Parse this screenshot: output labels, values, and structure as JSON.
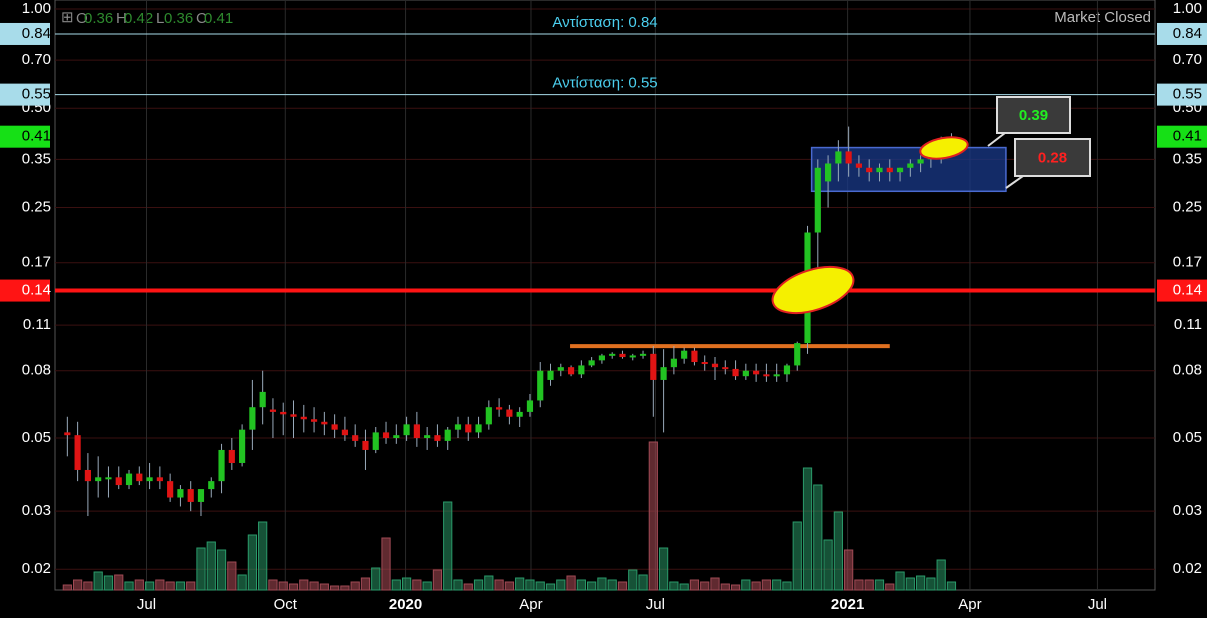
{
  "chart_data": {
    "type": "candlestick",
    "market_status": "Market Closed",
    "ohlc_legend": [
      {
        "key": "O",
        "value": 0.36
      },
      {
        "key": "H",
        "value": 0.42
      },
      {
        "key": "L",
        "value": 0.36
      },
      {
        "key": "C",
        "value": 0.41
      }
    ],
    "log_scale": true,
    "grid": true,
    "up_color": "#22c322",
    "down_color": "#e01414",
    "ylim": [
      0.0173,
      1.0
    ],
    "yticks": [
      {
        "value": 1.0,
        "label": "1.00"
      },
      {
        "value": 0.7,
        "label": "0.70"
      },
      {
        "value": 0.5,
        "label": "0.50"
      },
      0.35,
      0.25,
      0.17,
      0.11,
      0.08,
      0.05,
      0.03,
      0.02
    ],
    "xlim": [
      -1.2,
      105.8
    ],
    "xticks": [
      {
        "value": 7.7,
        "label": "Jul"
      },
      {
        "value": 21.2,
        "label": "Oct"
      },
      {
        "value": 32.9,
        "label": "2020"
      },
      {
        "value": 45.1,
        "label": "Apr"
      },
      {
        "value": 57.2,
        "label": "Jul"
      },
      {
        "value": 75.9,
        "label": "2021"
      },
      {
        "value": 87.8,
        "label": "Apr"
      },
      {
        "value": 100.2,
        "label": "Jul"
      }
    ],
    "open": [
      0.052,
      0.051,
      0.04,
      0.037,
      0.038,
      0.038,
      0.036,
      0.039,
      0.037,
      0.038,
      0.037,
      0.033,
      0.035,
      0.032,
      0.035,
      0.037,
      0.046,
      0.042,
      0.053,
      0.062,
      0.061,
      0.06,
      0.059,
      0.058,
      0.057,
      0.056,
      0.055,
      0.053,
      0.051,
      0.049,
      0.046,
      0.052,
      0.05,
      0.051,
      0.055,
      0.05,
      0.051,
      0.049,
      0.053,
      0.055,
      0.052,
      0.055,
      0.062,
      0.061,
      0.058,
      0.06,
      0.065,
      0.075,
      0.08,
      0.082,
      0.078,
      0.083,
      0.086,
      0.089,
      0.09,
      0.088,
      0.089,
      0.09,
      0.075,
      0.082,
      0.087,
      0.092,
      0.085,
      0.084,
      0.082,
      0.081,
      0.077,
      0.08,
      0.078,
      0.077,
      0.078,
      0.083,
      0.097,
      0.21,
      0.3,
      0.34,
      0.37,
      0.34,
      0.33,
      0.32,
      0.33,
      0.32,
      0.33,
      0.34,
      0.35,
      0.35,
      0.36
    ],
    "high": [
      0.058,
      0.056,
      0.045,
      0.044,
      0.041,
      0.041,
      0.04,
      0.041,
      0.042,
      0.041,
      0.039,
      0.036,
      0.037,
      0.034,
      0.038,
      0.048,
      0.05,
      0.055,
      0.075,
      0.08,
      0.066,
      0.064,
      0.065,
      0.063,
      0.062,
      0.06,
      0.059,
      0.058,
      0.055,
      0.053,
      0.054,
      0.056,
      0.055,
      0.058,
      0.06,
      0.054,
      0.055,
      0.054,
      0.058,
      0.058,
      0.058,
      0.065,
      0.066,
      0.063,
      0.062,
      0.068,
      0.085,
      0.084,
      0.084,
      0.083,
      0.086,
      0.088,
      0.09,
      0.091,
      0.092,
      0.09,
      0.092,
      0.095,
      0.093,
      0.095,
      0.094,
      0.094,
      0.089,
      0.088,
      0.086,
      0.086,
      0.084,
      0.084,
      0.084,
      0.084,
      0.084,
      0.098,
      0.22,
      0.35,
      0.36,
      0.4,
      0.44,
      0.36,
      0.35,
      0.34,
      0.35,
      0.33,
      0.35,
      0.36,
      0.37,
      0.41,
      0.42
    ],
    "low": [
      0.044,
      0.037,
      0.029,
      0.033,
      0.033,
      0.035,
      0.035,
      0.036,
      0.035,
      0.035,
      0.032,
      0.031,
      0.03,
      0.029,
      0.033,
      0.034,
      0.04,
      0.041,
      0.046,
      0.055,
      0.05,
      0.051,
      0.05,
      0.052,
      0.052,
      0.051,
      0.05,
      0.049,
      0.047,
      0.04,
      0.045,
      0.048,
      0.048,
      0.049,
      0.047,
      0.046,
      0.047,
      0.046,
      0.05,
      0.049,
      0.05,
      0.053,
      0.058,
      0.055,
      0.054,
      0.058,
      0.062,
      0.072,
      0.077,
      0.077,
      0.076,
      0.082,
      0.084,
      0.087,
      0.087,
      0.086,
      0.087,
      0.058,
      0.052,
      0.078,
      0.084,
      0.083,
      0.08,
      0.075,
      0.078,
      0.075,
      0.075,
      0.074,
      0.074,
      0.074,
      0.074,
      0.08,
      0.09,
      0.16,
      0.25,
      0.3,
      0.31,
      0.31,
      0.3,
      0.3,
      0.3,
      0.3,
      0.31,
      0.32,
      0.33,
      0.34,
      0.36
    ],
    "close": [
      0.051,
      0.04,
      0.037,
      0.038,
      0.038,
      0.036,
      0.039,
      0.037,
      0.038,
      0.037,
      0.033,
      0.035,
      0.032,
      0.035,
      0.037,
      0.046,
      0.042,
      0.053,
      0.062,
      0.069,
      0.06,
      0.059,
      0.058,
      0.057,
      0.056,
      0.055,
      0.053,
      0.051,
      0.049,
      0.046,
      0.052,
      0.05,
      0.051,
      0.055,
      0.05,
      0.051,
      0.049,
      0.053,
      0.055,
      0.052,
      0.055,
      0.062,
      0.061,
      0.058,
      0.06,
      0.065,
      0.08,
      0.08,
      0.082,
      0.078,
      0.083,
      0.086,
      0.089,
      0.09,
      0.088,
      0.089,
      0.09,
      0.075,
      0.082,
      0.087,
      0.092,
      0.085,
      0.084,
      0.082,
      0.081,
      0.077,
      0.08,
      0.078,
      0.077,
      0.078,
      0.083,
      0.097,
      0.21,
      0.33,
      0.34,
      0.37,
      0.34,
      0.33,
      0.32,
      0.33,
      0.32,
      0.33,
      0.34,
      0.35,
      0.37,
      0.38,
      0.41
    ],
    "volume": [
      5,
      10,
      8,
      18,
      14,
      15,
      8,
      10,
      8,
      10,
      8,
      8,
      8,
      42,
      48,
      40,
      28,
      15,
      55,
      68,
      10,
      8,
      6,
      10,
      8,
      6,
      4,
      4,
      8,
      12,
      22,
      52,
      10,
      12,
      10,
      8,
      20,
      88,
      10,
      6,
      10,
      14,
      10,
      8,
      12,
      10,
      8,
      6,
      10,
      14,
      10,
      8,
      12,
      10,
      8,
      20,
      15,
      148,
      42,
      8,
      6,
      10,
      8,
      12,
      6,
      5,
      10,
      8,
      10,
      10,
      8,
      68,
      122,
      105,
      50,
      78,
      40,
      10,
      10,
      10,
      6,
      18,
      12,
      14,
      12,
      30,
      8
    ],
    "vlim": [
      0,
      150
    ],
    "levels": [
      {
        "value": 0.84,
        "text": "Αντίσταση: 0.84",
        "color": "#a8dcea"
      },
      {
        "value": 0.55,
        "text": "Αντίσταση: 0.55",
        "color": "#a8dcea"
      },
      {
        "value": 0.14,
        "color": "#ff1414"
      }
    ],
    "last_price": {
      "value": 0.41,
      "color": "#16e016"
    },
    "support_line": {
      "value": 0.095,
      "x": [
        48.9,
        80.0
      ],
      "color": "#e07020"
    },
    "range_box": {
      "ylim": [
        0.28,
        0.38
      ],
      "x": [
        72.4,
        91.3
      ],
      "color": "#1a3a8a"
    },
    "callouts": [
      {
        "value": 0.39,
        "color": "#22ee22"
      },
      {
        "value": 0.28,
        "color": "#ff2020"
      }
    ]
  }
}
